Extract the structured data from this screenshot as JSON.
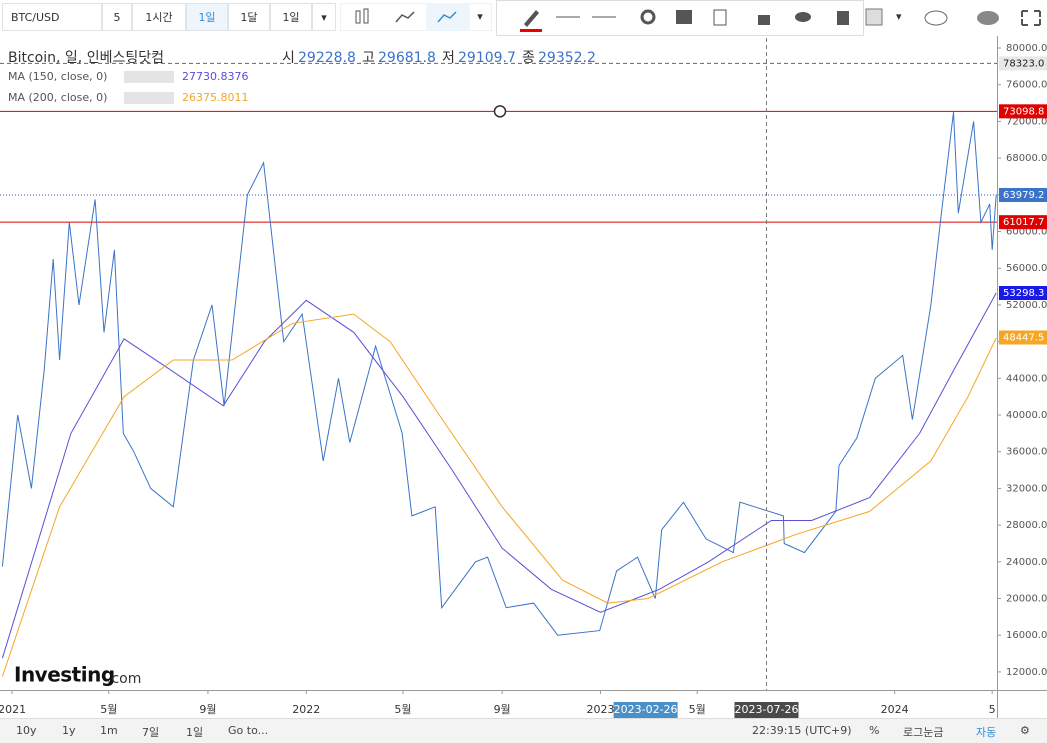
{
  "toolbar": {
    "symbol": "BTC/USD",
    "intervals": [
      "5",
      "1시간",
      "1일",
      "1달",
      "1일"
    ]
  },
  "logo": {
    "main": "Investing",
    "suffix": ".com"
  },
  "bottom": {
    "ranges": [
      "10y",
      "1y",
      "1m",
      "7일",
      "1일"
    ],
    "goto": "Go to...",
    "clock": "22:39:15 (UTC+9)",
    "percent": "%",
    "log": "로그눈금",
    "auto": "자동"
  },
  "chart_data": {
    "type": "line",
    "title": "Bitcoin, 일, 인베스팅닷컴",
    "ohlc": [
      {
        "label": "시",
        "value": 29228.8
      },
      {
        "label": "고",
        "value": 29681.8
      },
      {
        "label": "저",
        "value": 29109.7
      },
      {
        "label": "종",
        "value": 29352.2
      }
    ],
    "xlim": [
      "2020-12-17",
      "2024-05-07"
    ],
    "xticks": [
      {
        "value": "2021-01-01",
        "label": "2021"
      },
      {
        "value": "2021-05-01",
        "label": "5월"
      },
      {
        "value": "2021-09-01",
        "label": "9월"
      },
      {
        "value": "2022-01-01",
        "label": "2022"
      },
      {
        "value": "2022-05-01",
        "label": "5월"
      },
      {
        "value": "2022-09-01",
        "label": "9월"
      },
      {
        "value": "2023-01-01",
        "label": "2023"
      },
      {
        "value": "2023-05-01",
        "label": "5월"
      },
      {
        "value": "2024-01-01",
        "label": "2024"
      },
      {
        "value": "2024-05-01",
        "label": "5"
      }
    ],
    "ylim": [
      10030,
      81090
    ],
    "yticks": [
      {
        "value": 12000,
        "label": "12000.0"
      },
      {
        "value": 16000,
        "label": "16000.0"
      },
      {
        "value": 20000,
        "label": "20000.0"
      },
      {
        "value": 24000,
        "label": "24000.0"
      },
      {
        "value": 28000,
        "label": "28000.0"
      },
      {
        "value": 32000,
        "label": "32000.0"
      },
      {
        "value": 36000,
        "label": "36000.0"
      },
      {
        "value": 40000,
        "label": "40000.0"
      },
      {
        "value": 44000,
        "label": "44000.0"
      },
      {
        "value": 48000,
        "label": "48000.0"
      },
      {
        "value": 52000,
        "label": "52000.0"
      },
      {
        "value": 56000,
        "label": "56000.0"
      },
      {
        "value": 60000,
        "label": "60000.0"
      },
      {
        "value": 64000,
        "label": "64000.0"
      },
      {
        "value": 68000,
        "label": "68000.0"
      },
      {
        "value": 72000,
        "label": "72000.0"
      },
      {
        "value": 76000,
        "label": "76000.0"
      },
      {
        "value": 80000,
        "label": "80000.0"
      }
    ],
    "series": [
      {
        "color": "#3b73c8",
        "x": [
          "2020-12-20",
          "2021-01-08",
          "2021-01-25",
          "2021-02-10",
          "2021-02-21",
          "2021-03-01",
          "2021-03-13",
          "2021-03-25",
          "2021-04-14",
          "2021-04-25",
          "2021-05-08",
          "2021-05-19",
          "2021-06-01",
          "2021-06-22",
          "2021-07-20",
          "2021-08-14",
          "2021-09-06",
          "2021-09-21",
          "2021-10-20",
          "2021-11-09",
          "2021-12-04",
          "2021-12-27",
          "2022-01-22",
          "2022-02-10",
          "2022-02-24",
          "2022-03-28",
          "2022-04-30",
          "2022-05-12",
          "2022-06-10",
          "2022-06-18",
          "2022-07-30",
          "2022-08-14",
          "2022-09-06",
          "2022-10-10",
          "2022-11-09",
          "2022-12-31",
          "2023-01-21",
          "2023-02-16",
          "2023-03-10",
          "2023-03-18",
          "2023-04-14",
          "2023-05-12",
          "2023-06-15",
          "2023-06-23",
          "2023-08-16",
          "2023-08-17",
          "2023-09-11",
          "2023-10-20",
          "2023-10-24",
          "2023-11-15",
          "2023-12-08",
          "2024-01-11",
          "2024-01-23",
          "2024-02-15",
          "2024-02-28",
          "2024-03-14",
          "2024-03-20",
          "2024-04-08",
          "2024-04-17",
          "2024-04-28",
          "2024-05-01",
          "2024-05-06"
        ],
        "values": [
          23500,
          40000,
          32000,
          45000,
          57000,
          46000,
          61000,
          52000,
          63500,
          49000,
          58000,
          38000,
          36000,
          32000,
          30000,
          46000,
          52000,
          41000,
          64000,
          67500,
          48000,
          51000,
          35000,
          44000,
          37000,
          47500,
          38000,
          29000,
          30000,
          19000,
          24000,
          24500,
          19000,
          19500,
          16000,
          16500,
          23000,
          24500,
          20000,
          27500,
          30500,
          26500,
          25000,
          30500,
          29000,
          26000,
          25000,
          29500,
          34500,
          37500,
          44000,
          46500,
          39500,
          52000,
          62000,
          73000,
          62000,
          72000,
          61000,
          63000,
          58000,
          64000
        ]
      },
      {
        "name": "MA (150, close, 0)",
        "color": "#5a4fd6",
        "last_value": 27730.8376,
        "x": [
          "2020-12-20",
          "2021-03-15",
          "2021-05-20",
          "2021-07-15",
          "2021-09-20",
          "2021-11-10",
          "2022-01-01",
          "2022-03-01",
          "2022-05-01",
          "2022-07-01",
          "2022-09-01",
          "2022-11-01",
          "2023-01-01",
          "2023-03-15",
          "2023-05-15",
          "2023-08-01",
          "2023-09-20",
          "2023-12-01",
          "2024-02-01",
          "2024-03-15",
          "2024-05-06"
        ],
        "values": [
          13500,
          38000,
          48300,
          45000,
          41000,
          48000,
          52500,
          49000,
          42000,
          34000,
          25500,
          21000,
          18500,
          21000,
          24000,
          28500,
          28500,
          31000,
          38000,
          45000,
          53300
        ]
      },
      {
        "name": "MA (200, close, 0)",
        "color": "#f5a623",
        "last_value": 26375.8011,
        "x": [
          "2020-12-20",
          "2021-03-01",
          "2021-05-20",
          "2021-07-20",
          "2021-10-01",
          "2021-12-15",
          "2022-03-01",
          "2022-04-15",
          "2022-06-15",
          "2022-09-01",
          "2022-11-15",
          "2023-01-10",
          "2023-03-01",
          "2023-06-01",
          "2023-09-01",
          "2023-12-01",
          "2024-02-15",
          "2024-04-01",
          "2024-05-06"
        ],
        "values": [
          11500,
          30000,
          42000,
          46000,
          46000,
          50000,
          51000,
          48000,
          40000,
          30000,
          22000,
          19500,
          20000,
          24000,
          27000,
          29500,
          35000,
          42000,
          48400
        ]
      }
    ],
    "price_levels": [
      {
        "value": 78323,
        "label": "78323.0",
        "color": "#666",
        "tag": "#e8e8e8",
        "style": "dashed"
      },
      {
        "value": 73098.8,
        "label": "73098.8",
        "color": "#e00000",
        "tag": "#e00000",
        "style": "solid"
      },
      {
        "value": 63979.2,
        "label": "63979.2",
        "color": "#3355cc",
        "tag": "#3b73c8",
        "style": "dotted"
      },
      {
        "value": 61017.7,
        "label": "61017.7",
        "color": "#e00000",
        "tag": "#e00000",
        "style": "solid"
      },
      {
        "value": 53298.3,
        "label": "53298.3",
        "tag": "#1a1ae6"
      },
      {
        "value": 48447.5,
        "label": "48447.5",
        "tag": "#f5a623"
      }
    ],
    "highlight_date": "2023-02-26",
    "crosshair_date": "2023-07-26"
  }
}
